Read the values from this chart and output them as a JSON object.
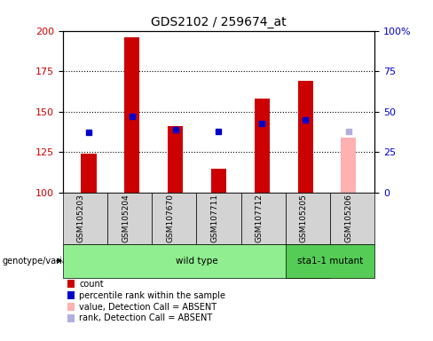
{
  "title": "GDS2102 / 259674_at",
  "samples": [
    "GSM105203",
    "GSM105204",
    "GSM107670",
    "GSM107711",
    "GSM107712",
    "GSM105205",
    "GSM105206"
  ],
  "count_values": [
    124,
    196,
    141,
    115,
    158,
    169,
    134
  ],
  "percentile_values": [
    137,
    147,
    139,
    138,
    143,
    145,
    138
  ],
  "absent_sample_indices": [
    6
  ],
  "count_color_normal": "#cc0000",
  "count_color_absent": "#ffb0b0",
  "percentile_color_normal": "#0000cc",
  "percentile_color_absent": "#b0b0dd",
  "ymin": 100,
  "ymax": 200,
  "yticks_left": [
    100,
    125,
    150,
    175,
    200
  ],
  "yticks_right": [
    0,
    25,
    50,
    75,
    100
  ],
  "ylabel_left_color": "#cc0000",
  "ylabel_right_color": "#0000cc",
  "genotype_groups": [
    {
      "label": "wild type",
      "start": 0,
      "end": 5,
      "color": "#90ee90"
    },
    {
      "label": "sta1-1 mutant",
      "start": 5,
      "end": 6,
      "color": "#55cc55"
    }
  ],
  "genotype_label": "genotype/variation",
  "legend_items": [
    {
      "label": "count",
      "color": "#cc0000"
    },
    {
      "label": "percentile rank within the sample",
      "color": "#0000cc"
    },
    {
      "label": "value, Detection Call = ABSENT",
      "color": "#ffb0b0"
    },
    {
      "label": "rank, Detection Call = ABSENT",
      "color": "#b0b0dd"
    }
  ],
  "bar_width": 0.35,
  "background_color": "#ffffff",
  "title_fontsize": 10
}
